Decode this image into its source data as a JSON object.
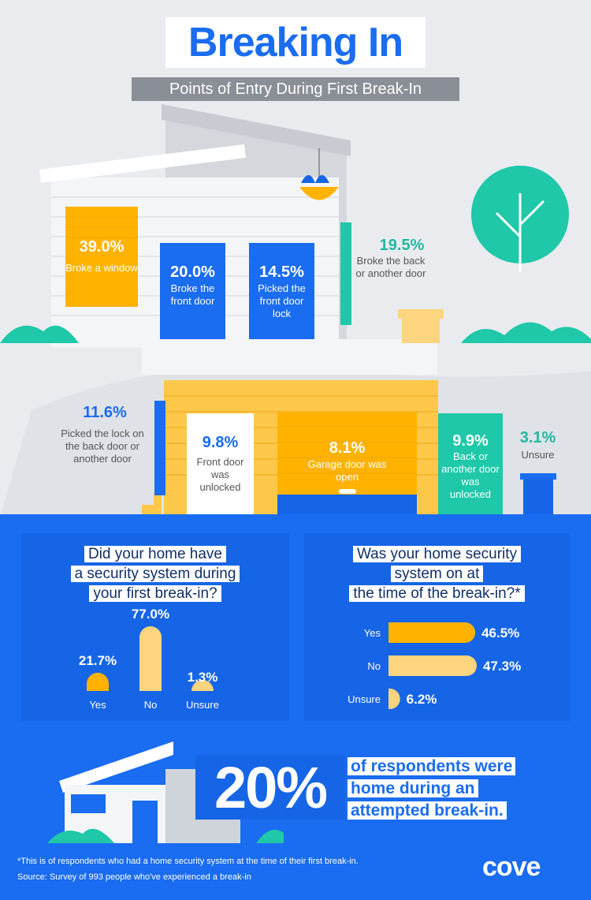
{
  "header": {
    "title": "Breaking In",
    "subtitle": "Points of Entry During First Break-In"
  },
  "entry_points": [
    {
      "pct": "39.0%",
      "label": "Broke a window"
    },
    {
      "pct": "20.0%",
      "label": "Broke the front door"
    },
    {
      "pct": "14.5%",
      "label": "Picked the front door lock"
    },
    {
      "pct": "19.5%",
      "label": "Broke the back or another door"
    },
    {
      "pct": "11.6%",
      "label": "Picked the lock on the back door or another door"
    },
    {
      "pct": "9.8%",
      "label": "Front door was unlocked"
    },
    {
      "pct": "8.1%",
      "label": "Garage door was open"
    },
    {
      "pct": "9.9%",
      "label": "Back or another door was unlocked"
    },
    {
      "pct": "3.1%",
      "label": "Unsure"
    }
  ],
  "chart_data": [
    {
      "type": "bar",
      "title": "Did your home have a security system during your first break-in?",
      "categories": [
        "Yes",
        "No",
        "Unsure"
      ],
      "values": [
        21.7,
        77.0,
        1.3
      ],
      "labels": [
        "21.7%",
        "77.0%",
        "1.3%"
      ],
      "ylim": [
        0,
        100
      ]
    },
    {
      "type": "bar",
      "orientation": "horizontal",
      "title": "Was your home security system on at the time of the break-in?*",
      "categories": [
        "Yes",
        "No",
        "Unsure"
      ],
      "values": [
        46.5,
        47.3,
        6.2
      ],
      "labels": [
        "46.5%",
        "47.3%",
        "6.2%"
      ],
      "xlim": [
        0,
        50
      ]
    }
  ],
  "q1_lines": [
    "Did your home have",
    "a security system during",
    "your first break-in?"
  ],
  "q2_lines": [
    "Was your home security",
    "system on at",
    "the time of the break-in?*"
  ],
  "stat": {
    "big": "20%",
    "lines": [
      "of respondents were",
      "home during an",
      "attempted break-in."
    ]
  },
  "footer": {
    "note": "*This is of respondents who had a home security system at the time of their first break-in.",
    "source": "Source: Survey of 993 people who've experienced a break-in",
    "brand": "cove"
  },
  "colors": {
    "blue": "#1a6cf0",
    "dark_blue": "#1565e6",
    "yellow": "#ffb300",
    "light_yellow": "#fdd57e",
    "teal": "#1ec8a8"
  }
}
